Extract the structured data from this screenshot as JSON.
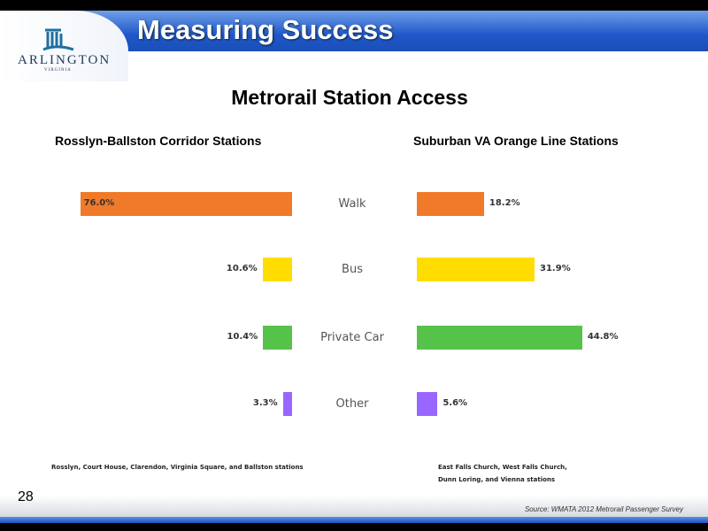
{
  "header": {
    "title": "Measuring Success",
    "logo_text": "ARLINGTON",
    "logo_sub": "VIRGINIA"
  },
  "slide_title": "Metrorail Station Access",
  "page_number": "28",
  "source": "Source: WMATA 2012 Metrorail Passenger Survey",
  "colors": {
    "Walk": "#f07a2a",
    "Bus": "#ffdd00",
    "Private Car": "#55c24a",
    "Other": "#9966ff"
  },
  "chart_data": [
    {
      "type": "bar",
      "orientation": "horizontal",
      "title": "Rosslyn-Ballston Corridor Stations",
      "categories": [
        "Walk",
        "Bus",
        "Private Car",
        "Other"
      ],
      "values": [
        76.0,
        10.6,
        10.4,
        3.3
      ],
      "labels": [
        "76.0%",
        "10.6%",
        "10.4%",
        "3.3%"
      ],
      "note": "Rosslyn, Court House, Clarendon, Virginia Square, and Ballston stations",
      "direction": "right-to-left"
    },
    {
      "type": "bar",
      "orientation": "horizontal",
      "title": "Suburban VA Orange Line Stations",
      "categories": [
        "Walk",
        "Bus",
        "Private Car",
        "Other"
      ],
      "values": [
        18.2,
        31.9,
        44.8,
        5.6
      ],
      "labels": [
        "18.2%",
        "31.9%",
        "44.8%",
        "5.6%"
      ],
      "note_lines": [
        "East Falls Church, West Falls Church,",
        "Dunn Loring, and Vienna stations"
      ]
    }
  ]
}
